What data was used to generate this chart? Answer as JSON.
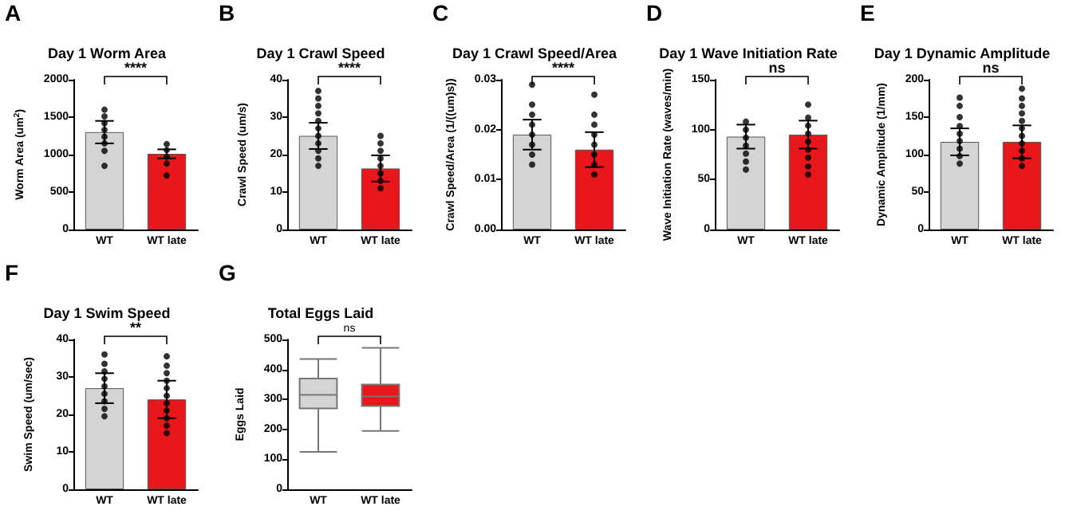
{
  "chart_data": [
    {
      "type": "bar",
      "title": "Day 1 Worm Area",
      "ylabel": "Worm Area (um$^{2}$)",
      "annotations": [
        "A",
        "****"
      ],
      "categories": [
        "WT",
        "WT late"
      ],
      "ylim": [
        0,
        2000
      ],
      "yticks": [
        0,
        500,
        1000,
        1500,
        2000
      ],
      "grid": false,
      "marker": "circle",
      "series": [
        {
          "type": "bar",
          "values": [
            1300,
            1010
          ],
          "colors": [
            "#d4d4d4",
            "#e8171c"
          ],
          "errors": [
            150,
            60
          ]
        },
        {
          "type": "scatter",
          "color": "#000000",
          "x": [
            "WT",
            "WT",
            "WT",
            "WT",
            "WT",
            "WT",
            "WT",
            "WT",
            "WT late",
            "WT late",
            "WT late",
            "WT late",
            "WT late"
          ],
          "values": [
            850,
            1050,
            1150,
            1240,
            1330,
            1420,
            1510,
            1600,
            720,
            880,
            970,
            1060,
            1140
          ]
        }
      ]
    },
    {
      "type": "bar",
      "title": "Day 1 Crawl Speed",
      "ylabel": "Crawl Speed (um/s)",
      "annotations": [
        "B",
        "****"
      ],
      "categories": [
        "WT",
        "WT late"
      ],
      "ylim": [
        0,
        40
      ],
      "yticks": [
        0,
        10,
        20,
        30,
        40
      ],
      "grid": false,
      "marker": "circle",
      "series": [
        {
          "type": "bar",
          "values": [
            25,
            16.3
          ],
          "colors": [
            "#d4d4d4",
            "#e8171c"
          ],
          "errors": [
            3.5,
            3.5
          ]
        },
        {
          "type": "scatter",
          "color": "#000000",
          "x": [
            "WT",
            "WT",
            "WT",
            "WT",
            "WT",
            "WT",
            "WT",
            "WT",
            "WT",
            "WT",
            "WT",
            "WT late",
            "WT late",
            "WT late",
            "WT late",
            "WT late",
            "WT late",
            "WT late",
            "WT late"
          ],
          "values": [
            17,
            19,
            21,
            23,
            25,
            27,
            29,
            31,
            33,
            35,
            37,
            11,
            13,
            15,
            17,
            19,
            21,
            23,
            25
          ]
        }
      ]
    },
    {
      "type": "bar",
      "title": "Day 1 Crawl Speed/Area",
      "ylabel": "Crawl Speed/Area (1/((um)s))",
      "annotations": [
        "C",
        "****"
      ],
      "categories": [
        "WT",
        "WT late"
      ],
      "ylim": [
        0,
        0.03
      ],
      "yticks": [
        {
          "value": 0,
          "label": "0.00"
        },
        {
          "value": 0.01,
          "label": "0.01"
        },
        {
          "value": 0.02,
          "label": "0.02"
        },
        {
          "value": 0.03,
          "label": "0.03"
        }
      ],
      "grid": false,
      "marker": "circle",
      "series": [
        {
          "type": "bar",
          "values": [
            0.019,
            0.016
          ],
          "colors": [
            "#d4d4d4",
            "#e8171c"
          ],
          "errors": [
            0.003,
            0.0035
          ]
        },
        {
          "type": "scatter",
          "color": "#000000",
          "x": [
            "WT",
            "WT",
            "WT",
            "WT",
            "WT",
            "WT",
            "WT",
            "WT",
            "WT late",
            "WT late",
            "WT late",
            "WT late",
            "WT late",
            "WT late",
            "WT late",
            "WT late"
          ],
          "values": [
            0.013,
            0.015,
            0.017,
            0.019,
            0.021,
            0.023,
            0.025,
            0.029,
            0.011,
            0.013,
            0.015,
            0.017,
            0.019,
            0.021,
            0.023,
            0.027
          ]
        }
      ]
    },
    {
      "type": "bar",
      "title": "Day 1 Wave Initiation Rate",
      "ylabel": "Wave Initiation Rate (waves/min)",
      "annotations": [
        "D",
        "ns"
      ],
      "categories": [
        "WT",
        "WT late"
      ],
      "ylim": [
        0,
        150
      ],
      "yticks": [
        0,
        50,
        100,
        150
      ],
      "grid": false,
      "marker": "circle",
      "series": [
        {
          "type": "bar",
          "values": [
            93,
            95
          ],
          "colors": [
            "#d4d4d4",
            "#e8171c"
          ],
          "errors": [
            12,
            14
          ]
        },
        {
          "type": "scatter",
          "color": "#000000",
          "x": [
            "WT",
            "WT",
            "WT",
            "WT",
            "WT",
            "WT",
            "WT",
            "WT late",
            "WT late",
            "WT late",
            "WT late",
            "WT late",
            "WT late",
            "WT late",
            "WT late",
            "WT late"
          ],
          "values": [
            60,
            68,
            76,
            84,
            92,
            100,
            108,
            55,
            63,
            72,
            80,
            88,
            96,
            104,
            112,
            125
          ]
        }
      ]
    },
    {
      "type": "bar",
      "title": "Day 1 Dynamic Amplitude",
      "ylabel": "Dynamic Amplitude (1/mm)",
      "annotations": [
        "E",
        "ns"
      ],
      "categories": [
        "WT",
        "WT late"
      ],
      "ylim": [
        0,
        200
      ],
      "yticks": [
        0,
        50,
        100,
        150,
        200
      ],
      "grid": false,
      "marker": "circle",
      "series": [
        {
          "type": "bar",
          "values": [
            117,
            117
          ],
          "colors": [
            "#d4d4d4",
            "#e8171c"
          ],
          "errors": [
            18,
            22
          ]
        },
        {
          "type": "scatter",
          "color": "#000000",
          "x": [
            "WT",
            "WT",
            "WT",
            "WT",
            "WT",
            "WT",
            "WT",
            "WT",
            "WT",
            "WT late",
            "WT late",
            "WT late",
            "WT late",
            "WT late",
            "WT late",
            "WT late",
            "WT late",
            "WT late",
            "WT late",
            "WT late"
          ],
          "values": [
            88,
            98,
            108,
            118,
            128,
            138,
            150,
            165,
            176,
            85,
            95,
            105,
            115,
            125,
            135,
            145,
            155,
            165,
            175,
            188
          ]
        }
      ]
    },
    {
      "type": "bar",
      "title": "Day 1 Swim Speed",
      "ylabel": "Swim Speed (um/sec)",
      "annotations": [
        "F",
        "**"
      ],
      "categories": [
        "WT",
        "WT late"
      ],
      "ylim": [
        0,
        40
      ],
      "yticks": [
        0,
        10,
        20,
        30,
        40
      ],
      "grid": false,
      "marker": "circle",
      "series": [
        {
          "type": "bar",
          "values": [
            27,
            24
          ],
          "colors": [
            "#d4d4d4",
            "#e8171c"
          ],
          "errors": [
            4,
            5
          ]
        },
        {
          "type": "scatter",
          "color": "#000000",
          "x": [
            "WT",
            "WT",
            "WT",
            "WT",
            "WT",
            "WT",
            "WT",
            "WT",
            "WT",
            "WT late",
            "WT late",
            "WT late",
            "WT late",
            "WT late",
            "WT late",
            "WT late",
            "WT late",
            "WT late",
            "WT late",
            "WT late"
          ],
          "values": [
            19.5,
            21.5,
            23.5,
            25.5,
            27.5,
            29.5,
            31.5,
            33.5,
            36,
            15,
            17,
            19,
            21,
            23,
            25,
            27,
            29,
            31,
            33,
            35.5
          ]
        }
      ]
    },
    {
      "type": "box",
      "title": "Total Eggs Laid",
      "ylabel": "Eggs Laid",
      "annotations": [
        "G",
        "ns"
      ],
      "categories": [
        "WT",
        "WT late"
      ],
      "ylim": [
        0,
        500
      ],
      "yticks": [
        0,
        100,
        200,
        300,
        400,
        500
      ],
      "grid": false,
      "colors": [
        "#d4d4d4",
        "#e8171c"
      ],
      "boxes": [
        {
          "low": 125,
          "q1": 270,
          "median": 315,
          "q3": 370,
          "high": 435
        },
        {
          "low": 195,
          "q1": 278,
          "median": 310,
          "q3": 350,
          "high": 472
        }
      ]
    }
  ]
}
